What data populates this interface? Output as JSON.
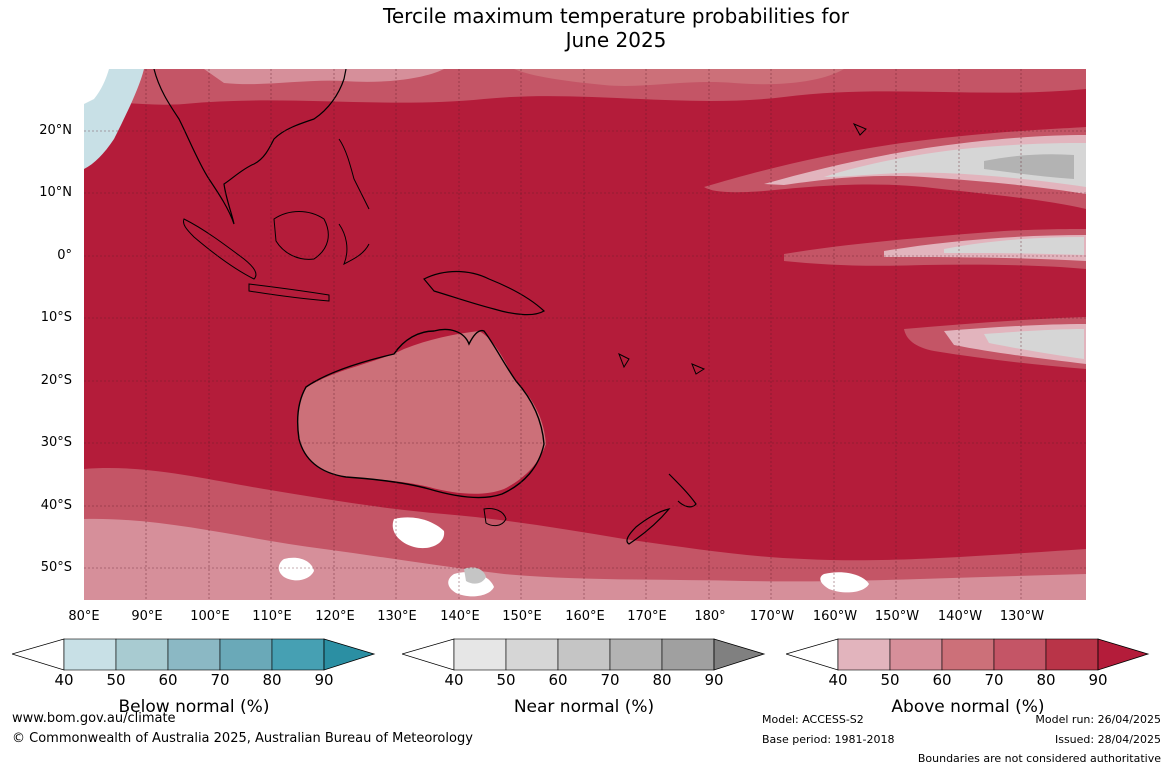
{
  "title": {
    "line1": "Tercile maximum temperature probabilities for",
    "line2": "June 2025"
  },
  "map": {
    "lat_labels": [
      "20°N",
      "10°N",
      "0°",
      "10°S",
      "20°S",
      "30°S",
      "40°S",
      "50°S"
    ],
    "lon_labels": [
      "80°E",
      "90°E",
      "100°E",
      "110°E",
      "120°E",
      "130°E",
      "140°E",
      "150°E",
      "160°E",
      "170°E",
      "180°",
      "170°W",
      "160°W",
      "150°W",
      "140°W",
      "130°W"
    ],
    "colors": {
      "ocean_dominant": "#b41c3a",
      "land_outline": "#000000",
      "boundary": "#808080"
    }
  },
  "colorbars": [
    {
      "title": "Below normal (%)",
      "ticks": [
        "40",
        "50",
        "60",
        "70",
        "80",
        "90"
      ],
      "colors": [
        "#c8e0e6",
        "#a8cbd1",
        "#8bb8c4",
        "#6aa9b8",
        "#46a0b3",
        "#2b8fa3"
      ]
    },
    {
      "title": "Near normal (%)",
      "ticks": [
        "40",
        "50",
        "60",
        "70",
        "80",
        "90"
      ],
      "colors": [
        "#e6e6e6",
        "#d6d6d6",
        "#c5c5c5",
        "#b3b3b3",
        "#a0a0a0",
        "#808080"
      ]
    },
    {
      "title": "Above normal (%)",
      "ticks": [
        "40",
        "50",
        "60",
        "70",
        "80",
        "90"
      ],
      "colors": [
        "#e2b4bd",
        "#d68f9a",
        "#cc7079",
        "#c45566",
        "#b93448",
        "#b41c3a"
      ]
    }
  ],
  "footer": {
    "website": "www.bom.gov.au/climate",
    "copyright": "© Commonwealth of Australia 2025, Australian Bureau of Meteorology",
    "model": "Model: ACCESS-S2",
    "base_period": "Base period: 1981-2018",
    "model_run": "Model run: 26/04/2025",
    "issued": "Issued: 28/04/2025",
    "disclaimer": "Boundaries are not considered authoritative"
  }
}
